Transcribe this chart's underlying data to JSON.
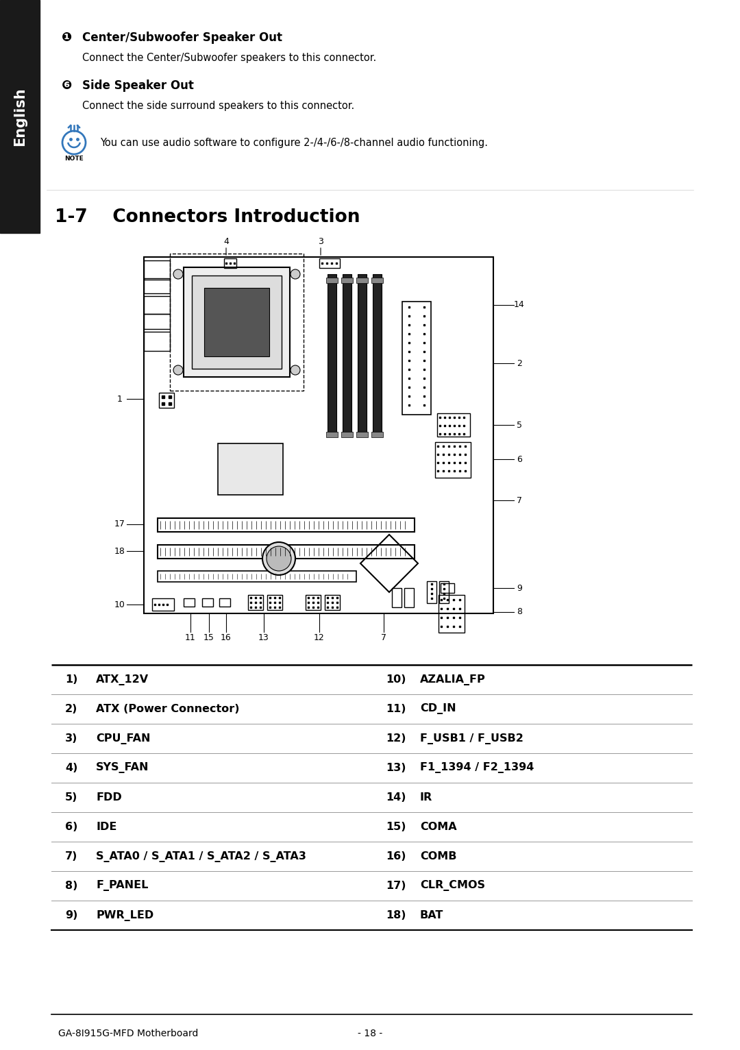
{
  "bg_color": "#ffffff",
  "sidebar_color": "#1a1a1a",
  "sidebar_text": "English",
  "section_title": "1-7    Connectors Introduction",
  "bullet1_header": "Center/Subwoofer Speaker Out",
  "bullet1_body": "Connect the Center/Subwoofer speakers to this connector.",
  "bullet2_header": "Side Speaker Out",
  "bullet2_body": "Connect the side surround speakers to this connector.",
  "note_text": "You can use audio software to configure 2-/4-/6-/8-channel audio functioning.",
  "footer_left": "GA-8I915G-MFD Motherboard",
  "footer_center": "- 18 -",
  "table_rows": [
    [
      "1)",
      "ATX_12V",
      "10)",
      "AZALIA_FP"
    ],
    [
      "2)",
      "ATX (Power Connector)",
      "11)",
      "CD_IN"
    ],
    [
      "3)",
      "CPU_FAN",
      "12)",
      "F_USB1 / F_USB2"
    ],
    [
      "4)",
      "SYS_FAN",
      "13)",
      "F1_1394 / F2_1394"
    ],
    [
      "5)",
      "FDD",
      "14)",
      "IR"
    ],
    [
      "6)",
      "IDE",
      "15)",
      "COMA"
    ],
    [
      "7)",
      "S_ATA0 / S_ATA1 / S_ATA2 / S_ATA3",
      "16)",
      "COMB"
    ],
    [
      "8)",
      "F_PANEL",
      "17)",
      "CLR_CMOS"
    ],
    [
      "9)",
      "PWR_LED",
      "18)",
      "BAT"
    ]
  ]
}
